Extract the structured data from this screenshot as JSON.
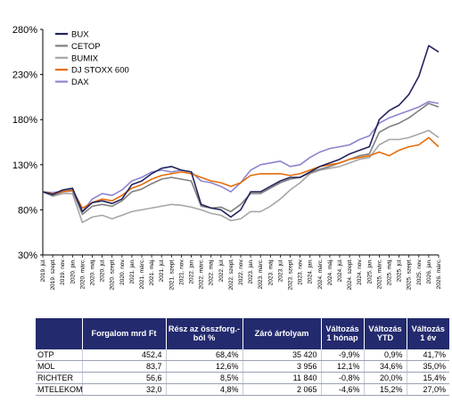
{
  "chart_data": {
    "type": "line",
    "yticks": [
      "30%",
      "80%",
      "130%",
      "180%",
      "230%",
      "280%"
    ],
    "ylim": [
      30,
      280
    ],
    "xticks": [
      "2019. júl.",
      "2019. szept.",
      "2019. nov.",
      "2020. jan.",
      "2020. márc.",
      "2020. máj.",
      "2020. júl.",
      "2020. szept.",
      "2020. nov.",
      "2021. jan.",
      "2021. márc.",
      "2021. máj.",
      "2021. júl.",
      "2021. szept.",
      "2021. nov.",
      "2022. jan.",
      "2022. márc.",
      "2022. máj.",
      "2022. júl.",
      "2022. szept.",
      "2022. nov.",
      "2023. jan.",
      "2023. márc.",
      "2023. máj.",
      "2023. júl.",
      "2023. szept.",
      "2023. nov.",
      "2024. jan.",
      "2024. márc.",
      "2024. máj.",
      "2024. júl.",
      "2024. szept.",
      "2024. nov.",
      "2025. jan.",
      "2025. márc.",
      "2025. máj.",
      "2025. júl.",
      "2025. szept.",
      "2025. nov.",
      "2026. jan.",
      "2026. márc."
    ],
    "legend_position": "top-left",
    "series": [
      {
        "name": "BUX",
        "color": "#22235e",
        "values": [
          100,
          97,
          102,
          104,
          78,
          88,
          90,
          87,
          92,
          108,
          112,
          120,
          126,
          128,
          124,
          122,
          86,
          82,
          80,
          72,
          80,
          100,
          100,
          106,
          112,
          116,
          116,
          122,
          128,
          132,
          136,
          142,
          146,
          150,
          180,
          190,
          196,
          208,
          228,
          262,
          255
        ]
      },
      {
        "name": "CETOP",
        "color": "#7f7f7f",
        "values": [
          100,
          96,
          100,
          101,
          75,
          84,
          86,
          84,
          90,
          100,
          103,
          109,
          114,
          116,
          114,
          112,
          84,
          82,
          83,
          78,
          86,
          98,
          98,
          104,
          110,
          114,
          116,
          121,
          125,
          128,
          132,
          136,
          140,
          142,
          166,
          172,
          176,
          182,
          190,
          198,
          194
        ]
      },
      {
        "name": "BUMIX",
        "color": "#a6a6a6",
        "values": [
          100,
          95,
          98,
          98,
          66,
          72,
          74,
          70,
          74,
          78,
          80,
          82,
          84,
          86,
          85,
          83,
          80,
          76,
          74,
          68,
          70,
          78,
          78,
          84,
          92,
          102,
          110,
          120,
          124,
          126,
          128,
          132,
          136,
          138,
          152,
          158,
          158,
          160,
          164,
          168,
          160
        ]
      },
      {
        "name": "DJ STOXX 600",
        "color": "#e36c0a",
        "values": [
          100,
          98,
          100,
          102,
          82,
          88,
          92,
          90,
          96,
          104,
          108,
          114,
          118,
          120,
          122,
          120,
          116,
          112,
          110,
          106,
          110,
          118,
          120,
          120,
          120,
          118,
          120,
          124,
          128,
          130,
          132,
          136,
          138,
          140,
          144,
          140,
          146,
          150,
          152,
          160,
          150
        ]
      },
      {
        "name": "DAX",
        "color": "#8b85cf",
        "values": [
          100,
          99,
          101,
          103,
          78,
          92,
          98,
          96,
          102,
          112,
          116,
          122,
          124,
          122,
          124,
          122,
          112,
          110,
          106,
          100,
          110,
          124,
          130,
          132,
          134,
          128,
          130,
          138,
          144,
          148,
          150,
          152,
          158,
          162,
          176,
          182,
          186,
          190,
          194,
          200,
          198
        ]
      }
    ]
  },
  "table": {
    "headers": [
      "",
      "Forgalom mrd Ft",
      "Rész az összforg.-ból %",
      "Záró árfolyam",
      "Változás 1 hónap",
      "Változás YTD",
      "Változás 1 év"
    ],
    "rows": [
      [
        "OTP",
        "452,4",
        "68,4%",
        "35 420",
        "-9,9%",
        "0,9%",
        "41,7%"
      ],
      [
        "MOL",
        "83,7",
        "12,6%",
        "3 956",
        "12,1%",
        "34,6%",
        "35,0%"
      ],
      [
        "RICHTER",
        "56,6",
        "8,5%",
        "11 840",
        "-0,8%",
        "20,0%",
        "15,4%"
      ],
      [
        "MTELEKOM",
        "32,0",
        "4,8%",
        "2 065",
        "-4,6%",
        "15,2%",
        "27,0%"
      ]
    ]
  }
}
